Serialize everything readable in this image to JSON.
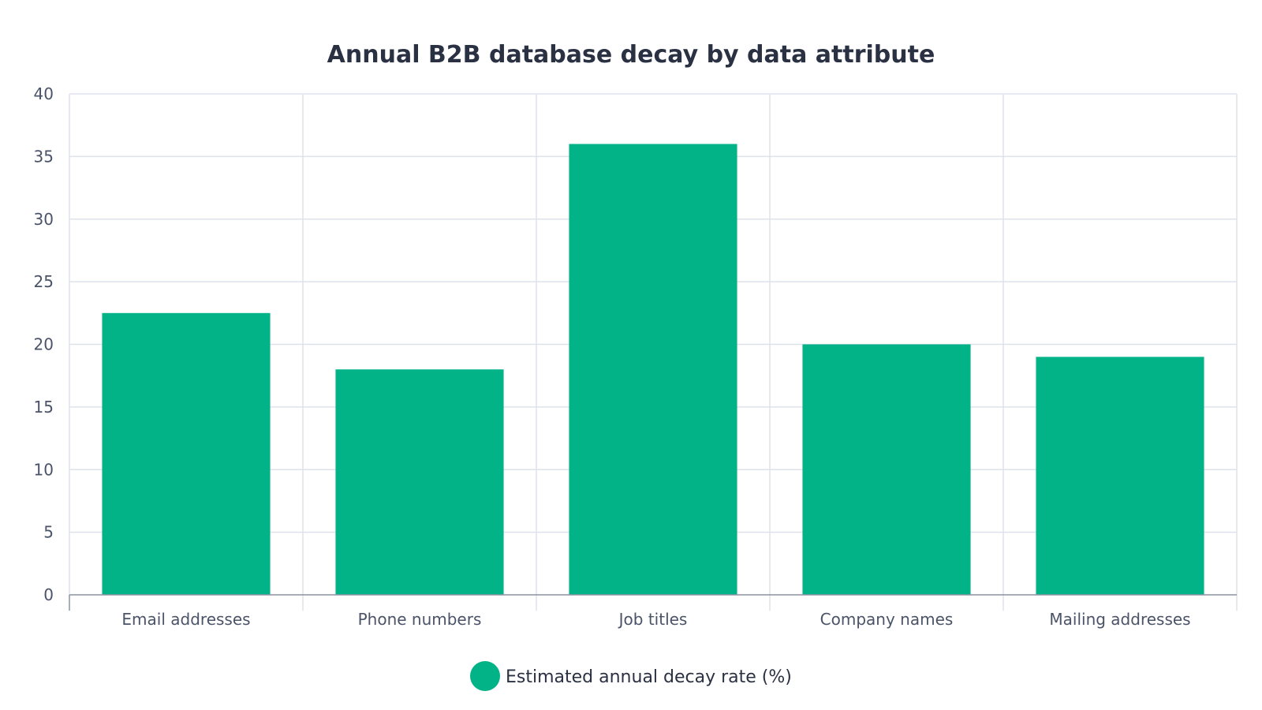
{
  "chart_data": {
    "type": "bar",
    "title": "Annual B2B database decay by data attribute",
    "categories": [
      "Email addresses",
      "Phone numbers",
      "Job titles",
      "Company names",
      "Mailing addresses"
    ],
    "series": [
      {
        "name": "Estimated annual decay rate (%)",
        "values": [
          22.5,
          18,
          36,
          20,
          19
        ],
        "color": "#02b388"
      }
    ],
    "xlabel": "",
    "ylabel": "",
    "ylim": [
      0,
      40
    ],
    "yticks": [
      "0",
      "5",
      "10",
      "15",
      "20",
      "25",
      "30",
      "35",
      "40"
    ],
    "grid": true,
    "legend_position": "bottom-center",
    "colors": {
      "grid": "#dde2ea",
      "axis": "#8a93a3",
      "text": "#4a5368",
      "title": "#2a3142"
    }
  }
}
